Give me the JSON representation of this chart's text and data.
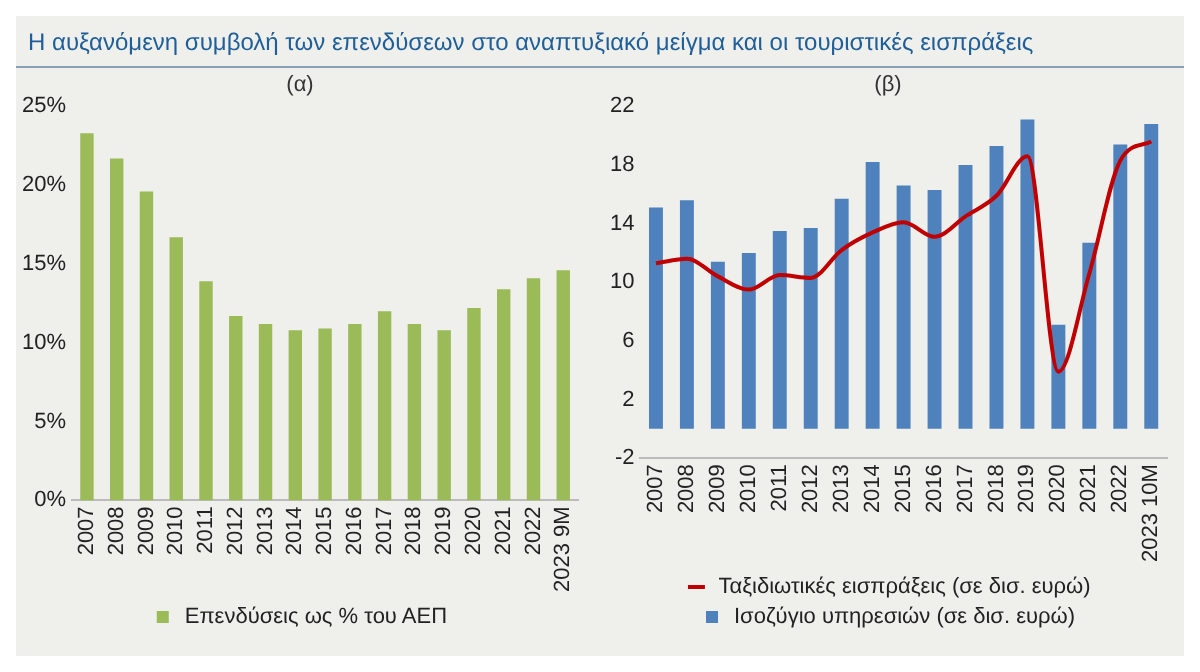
{
  "chart_data": [
    {
      "type": "bar",
      "title": "(α)",
      "annotations": [
        "Η αυξανόμενη συμβολή των επενδύσεων στο αναπτυξιακό μείγμα και οι τουριστικές εισπράξεις"
      ],
      "categories": [
        "2007",
        "2008",
        "2009",
        "2010",
        "2011",
        "2012",
        "2013",
        "2014",
        "2015",
        "2016",
        "2017",
        "2018",
        "2019",
        "2020",
        "2021",
        "2022",
        "2023 9M"
      ],
      "series": [
        {
          "name": "Επενδύσεις ως % του ΑΕΠ",
          "color": "#9bbb59",
          "values": [
            23.3,
            21.7,
            19.6,
            16.7,
            13.9,
            11.7,
            11.2,
            10.8,
            10.9,
            11.2,
            12.0,
            11.2,
            10.8,
            12.2,
            13.4,
            14.1,
            14.6
          ]
        }
      ],
      "ylim": [
        0,
        25
      ],
      "yticks": [
        {
          "value": 0,
          "label": "0%"
        },
        {
          "value": 5,
          "label": "5%"
        },
        {
          "value": 10,
          "label": "10%"
        },
        {
          "value": 15,
          "label": "15%"
        },
        {
          "value": 20,
          "label": "20%"
        },
        {
          "value": 25,
          "label": "25%"
        }
      ],
      "grid": false,
      "legend": "bottom"
    },
    {
      "type": "bar",
      "title": "(β)",
      "categories": [
        "2007",
        "2008",
        "2009",
        "2010",
        "2011",
        "2012",
        "2013",
        "2014",
        "2015",
        "2016",
        "2017",
        "2018",
        "2019",
        "2020",
        "2021",
        "2022",
        "2023 10M"
      ],
      "series": [
        {
          "name": "Ισοζύγιο υπηρεσιών (σε δισ. ευρώ)",
          "color": "#4f81bd",
          "values": [
            15.1,
            15.6,
            11.4,
            12.0,
            13.5,
            13.7,
            15.7,
            18.2,
            16.6,
            16.3,
            18.0,
            19.3,
            21.1,
            7.1,
            12.7,
            19.4,
            20.8
          ]
        },
        {
          "name": "Ταξιδιωτικές εισπράξεις (σε δισ. ευρώ)",
          "type": "line",
          "color": "#c00000",
          "values": [
            11.3,
            11.6,
            10.4,
            9.5,
            10.5,
            10.3,
            12.2,
            13.4,
            14.1,
            13.1,
            14.5,
            15.9,
            18.6,
            3.9,
            10.6,
            18.3,
            19.6
          ]
        }
      ],
      "ylim": [
        -2,
        22
      ],
      "yticks": [
        -2,
        2,
        6,
        10,
        14,
        18,
        22
      ],
      "grid": false,
      "legend": "bottom"
    }
  ]
}
